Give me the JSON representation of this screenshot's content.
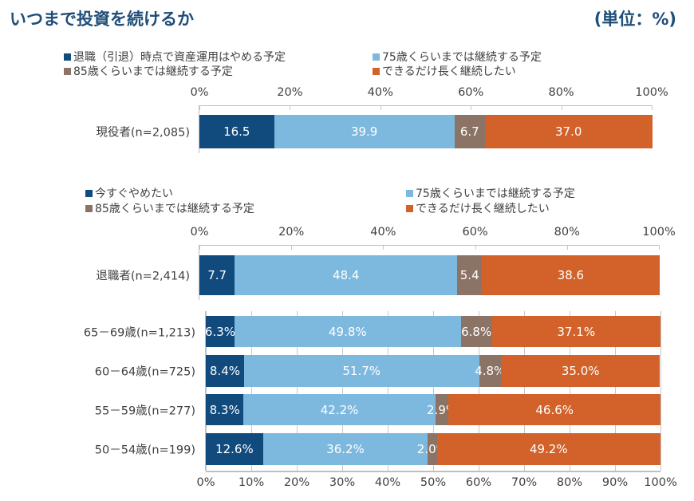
{
  "header": {
    "title": "いつまで投資を続けるか",
    "unit": "(単位：%)"
  },
  "colors": {
    "c1": "#114b7e",
    "c2": "#7db9de",
    "c3": "#8b7466",
    "c4": "#d2622a",
    "title": "#1f4e79"
  },
  "chart_data": [
    {
      "type": "bar",
      "orientation": "horizontal",
      "stacked": true,
      "legend": [
        "退職（引退）時点で資産運用はやめる予定",
        "75歳くらいまでは継続する予定",
        "85歳くらいまでは継続する予定",
        "できるだけ長く継続したい"
      ],
      "ticks": [
        "0%",
        "20%",
        "40%",
        "60%",
        "80%",
        "100%"
      ],
      "xlim": [
        0,
        100
      ],
      "grid": false,
      "categories": [
        "現役者(n=2,085)"
      ],
      "series": [
        {
          "name": "退職（引退）時点で資産運用はやめる予定",
          "values": [
            16.5
          ],
          "labels": [
            "16.5"
          ]
        },
        {
          "name": "75歳くらいまでは継続する予定",
          "values": [
            39.9
          ],
          "labels": [
            "39.9"
          ]
        },
        {
          "name": "85歳くらいまでは継続する予定",
          "values": [
            6.7
          ],
          "labels": [
            "6.7"
          ]
        },
        {
          "name": "できるだけ長く継続したい",
          "values": [
            37.0
          ],
          "labels": [
            "37.0"
          ]
        }
      ]
    },
    {
      "type": "bar",
      "orientation": "horizontal",
      "stacked": true,
      "legend": [
        "今すぐやめたい",
        "75歳くらいまでは継続する予定",
        "85歳くらいまでは継続する予定",
        "できるだけ長く継続したい"
      ],
      "ticks": [
        "0%",
        "20%",
        "40%",
        "60%",
        "80%",
        "100%"
      ],
      "xlim": [
        0,
        100
      ],
      "grid": false,
      "categories": [
        "退職者(n=2,414)"
      ],
      "series": [
        {
          "name": "今すぐやめたい",
          "values": [
            7.7
          ],
          "labels": [
            "7.7"
          ]
        },
        {
          "name": "75歳くらいまでは継続する予定",
          "values": [
            48.4
          ],
          "labels": [
            "48.4"
          ]
        },
        {
          "name": "85歳くらいまでは継続する予定",
          "values": [
            5.4
          ],
          "labels": [
            "5.4"
          ]
        },
        {
          "name": "できるだけ長く継続したい",
          "values": [
            38.6
          ],
          "labels": [
            "38.6"
          ]
        }
      ]
    },
    {
      "type": "bar",
      "orientation": "horizontal",
      "stacked": true,
      "ticks": [
        "0%",
        "10%",
        "20%",
        "30%",
        "40%",
        "50%",
        "60%",
        "70%",
        "80%",
        "90%",
        "100%"
      ],
      "xlim": [
        0,
        100
      ],
      "grid": true,
      "categories": [
        "65－69歳(n=1,213)",
        "60－64歳(n=725)",
        "55－59歳(n=277)",
        "50－54歳(n=199)"
      ],
      "series": [
        {
          "values": [
            6.3,
            8.4,
            8.3,
            12.6
          ],
          "labels": [
            "6.3%",
            "8.4%",
            "8.3%",
            "12.6%"
          ]
        },
        {
          "values": [
            49.8,
            51.7,
            42.2,
            36.2
          ],
          "labels": [
            "49.8%",
            "51.7%",
            "42.2%",
            "36.2%"
          ]
        },
        {
          "values": [
            6.8,
            4.8,
            2.9,
            2.0
          ],
          "labels": [
            "6.8%",
            "4.8%",
            "2.9%",
            "2.0%"
          ]
        },
        {
          "values": [
            37.1,
            35.0,
            46.6,
            49.2
          ],
          "labels": [
            "37.1%",
            "35.0%",
            "46.6%",
            "49.2%"
          ]
        }
      ]
    }
  ]
}
